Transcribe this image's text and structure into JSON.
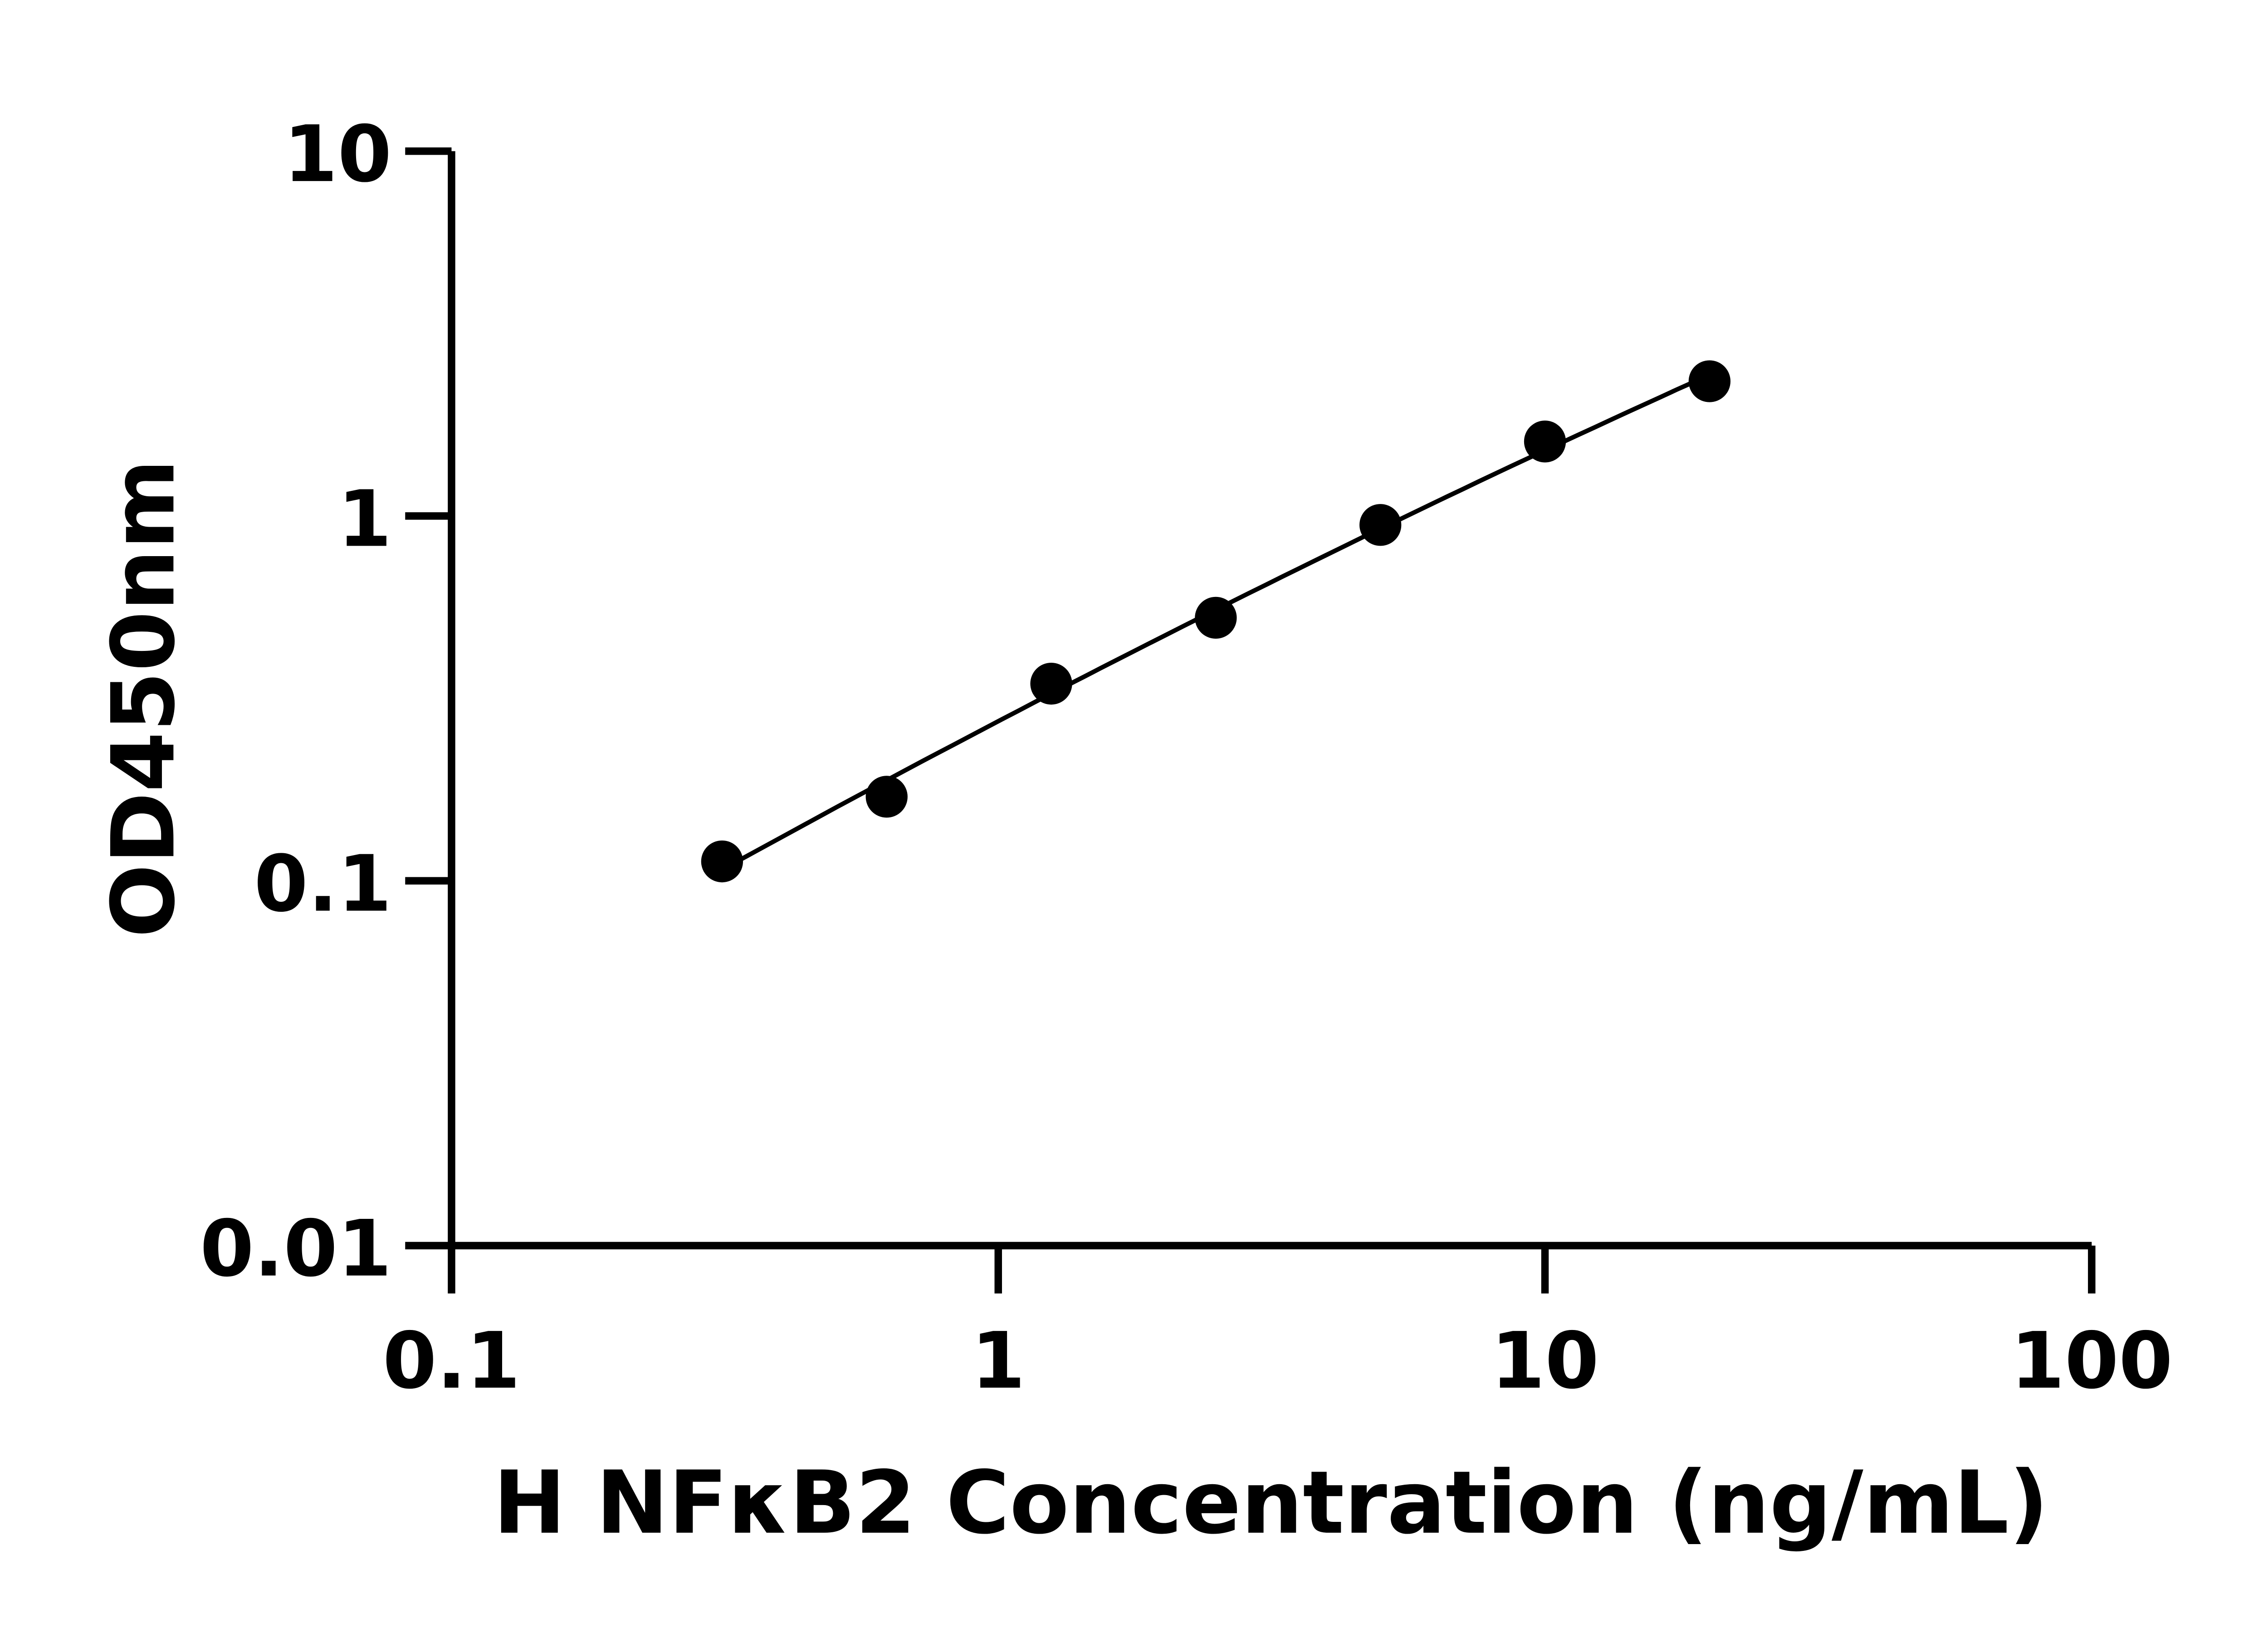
{
  "chart_data": {
    "type": "scatter",
    "title": "",
    "xlabel": "H NFκB2 Concentration (ng/mL)",
    "ylabel": "OD450nm",
    "xscale": "log",
    "yscale": "log",
    "xlim": [
      0.1,
      100
    ],
    "ylim": [
      0.01,
      10
    ],
    "xticks": [
      "0.1",
      "1",
      "10",
      "100"
    ],
    "yticks": [
      "0.01",
      "0.1",
      "1",
      "10"
    ],
    "grid": false,
    "fit_line": true,
    "marker_color": "#000000",
    "series": [
      {
        "x": [
          0.3125,
          0.625,
          1.25,
          2.5,
          5,
          10,
          20
        ],
        "y": [
          0.113,
          0.17,
          0.347,
          0.526,
          0.945,
          1.6,
          2.34
        ]
      }
    ]
  }
}
